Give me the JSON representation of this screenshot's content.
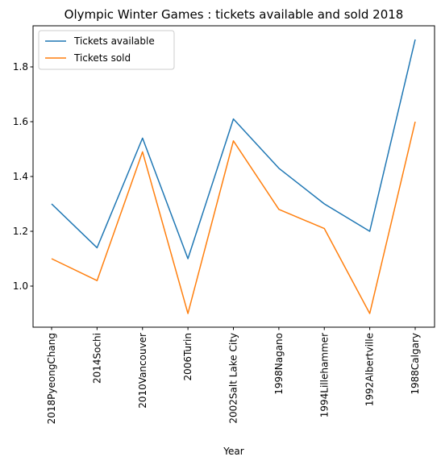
{
  "chart_data": {
    "type": "line",
    "title": "Olympic Winter Games : tickets available and sold 2018",
    "xlabel": "Year",
    "ylabel": "",
    "categories": [
      "2018PyeongChang",
      "2014Sochi",
      "2010Vancouver",
      "2006Turin",
      "2002Salt Lake City",
      "1998Nagano",
      "1994Lillehammer",
      "1992Albertville",
      "1988Calgary"
    ],
    "series": [
      {
        "name": "Tickets available",
        "color": "#1f77b4",
        "values": [
          1.3,
          1.14,
          1.54,
          1.1,
          1.61,
          1.43,
          1.3,
          1.2,
          1.9
        ]
      },
      {
        "name": "Tickets sold",
        "color": "#ff7f0e",
        "values": [
          1.1,
          1.02,
          1.49,
          0.9,
          1.53,
          1.28,
          1.21,
          0.9,
          1.6
        ]
      }
    ],
    "y_ticks": [
      "1.0",
      "1.2",
      "1.4",
      "1.6",
      "1.8"
    ],
    "ylim": [
      0.85,
      1.95
    ],
    "grid": false,
    "legend": "top-left"
  }
}
